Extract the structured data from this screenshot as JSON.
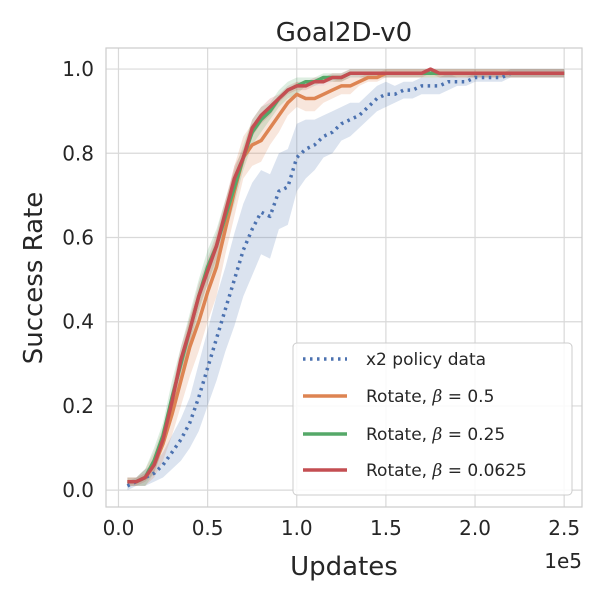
{
  "chart_data": {
    "type": "line",
    "title": "Goal2D-v0",
    "xlabel": "Updates",
    "ylabel": "Success Rate",
    "x_offset_label": "1e5",
    "xlim": [
      -0.07,
      2.6
    ],
    "ylim": [
      -0.04,
      1.05
    ],
    "grid": true,
    "legend_position": "lower-right",
    "x_ticks": [
      0.0,
      0.5,
      1.0,
      1.5,
      2.0,
      2.5
    ],
    "x_tick_labels": [
      "0.0",
      "0.5",
      "1.0",
      "1.5",
      "2.0",
      "2.5"
    ],
    "y_ticks": [
      0.0,
      0.2,
      0.4,
      0.6,
      0.8,
      1.0
    ],
    "y_tick_labels": [
      "0.0",
      "0.2",
      "0.4",
      "0.6",
      "0.8",
      "1.0"
    ],
    "x": [
      0.05,
      0.1,
      0.15,
      0.2,
      0.25,
      0.3,
      0.35,
      0.4,
      0.45,
      0.5,
      0.55,
      0.6,
      0.65,
      0.7,
      0.75,
      0.8,
      0.85,
      0.9,
      0.95,
      1.0,
      1.05,
      1.1,
      1.15,
      1.2,
      1.25,
      1.3,
      1.35,
      1.4,
      1.45,
      1.5,
      1.55,
      1.6,
      1.65,
      1.7,
      1.75,
      1.8,
      1.85,
      1.9,
      1.95,
      2.0,
      2.05,
      2.1,
      2.15,
      2.2,
      2.25,
      2.3,
      2.35,
      2.4,
      2.45,
      2.5
    ],
    "series": [
      {
        "name": "x2 policy data",
        "color": "#4c72b0",
        "style": "dotted",
        "values": [
          0.01,
          0.02,
          0.03,
          0.04,
          0.06,
          0.09,
          0.12,
          0.16,
          0.22,
          0.29,
          0.36,
          0.43,
          0.5,
          0.57,
          0.62,
          0.66,
          0.65,
          0.71,
          0.72,
          0.79,
          0.81,
          0.82,
          0.84,
          0.85,
          0.87,
          0.88,
          0.89,
          0.91,
          0.93,
          0.94,
          0.94,
          0.95,
          0.95,
          0.96,
          0.96,
          0.96,
          0.97,
          0.97,
          0.97,
          0.98,
          0.98,
          0.98,
          0.98,
          0.99,
          0.99,
          0.99,
          0.99,
          0.99,
          0.99,
          0.99
        ],
        "band": [
          0.01,
          0.01,
          0.02,
          0.02,
          0.03,
          0.04,
          0.05,
          0.06,
          0.08,
          0.09,
          0.1,
          0.1,
          0.11,
          0.11,
          0.11,
          0.1,
          0.1,
          0.09,
          0.09,
          0.08,
          0.07,
          0.06,
          0.05,
          0.05,
          0.04,
          0.04,
          0.03,
          0.03,
          0.03,
          0.03,
          0.02,
          0.02,
          0.02,
          0.02,
          0.02,
          0.02,
          0.02,
          0.01,
          0.01,
          0.01,
          0.01,
          0.01,
          0.01,
          0.01,
          0.01,
          0.01,
          0.01,
          0.01,
          0.01,
          0.01
        ]
      },
      {
        "name": "Rotate, β = 0.5",
        "color": "#dd8452",
        "style": "solid",
        "values": [
          0.02,
          0.02,
          0.03,
          0.06,
          0.11,
          0.18,
          0.26,
          0.34,
          0.4,
          0.47,
          0.53,
          0.62,
          0.71,
          0.79,
          0.82,
          0.83,
          0.86,
          0.89,
          0.92,
          0.94,
          0.93,
          0.93,
          0.94,
          0.95,
          0.96,
          0.96,
          0.97,
          0.98,
          0.98,
          0.99,
          0.99,
          0.99,
          0.99,
          0.99,
          0.99,
          0.99,
          0.99,
          0.99,
          0.99,
          0.99,
          0.99,
          0.99,
          0.99,
          0.99,
          0.99,
          0.99,
          0.99,
          0.99,
          0.99,
          0.99
        ],
        "band": [
          0.01,
          0.01,
          0.02,
          0.03,
          0.04,
          0.05,
          0.06,
          0.07,
          0.07,
          0.07,
          0.07,
          0.06,
          0.06,
          0.05,
          0.05,
          0.05,
          0.04,
          0.04,
          0.03,
          0.03,
          0.03,
          0.03,
          0.02,
          0.02,
          0.02,
          0.02,
          0.01,
          0.01,
          0.01,
          0.01,
          0.01,
          0.01,
          0.01,
          0.01,
          0.01,
          0.01,
          0.01,
          0.01,
          0.01,
          0.01,
          0.01,
          0.01,
          0.01,
          0.01,
          0.01,
          0.01,
          0.01,
          0.01,
          0.01,
          0.01
        ]
      },
      {
        "name": "Rotate, β = 0.25",
        "color": "#55a868",
        "style": "solid",
        "values": [
          0.02,
          0.02,
          0.03,
          0.07,
          0.13,
          0.22,
          0.3,
          0.38,
          0.46,
          0.53,
          0.58,
          0.65,
          0.72,
          0.79,
          0.85,
          0.88,
          0.9,
          0.93,
          0.95,
          0.96,
          0.97,
          0.97,
          0.98,
          0.98,
          0.98,
          0.99,
          0.99,
          0.99,
          0.99,
          0.99,
          0.99,
          0.99,
          0.99,
          0.99,
          0.99,
          0.99,
          0.99,
          0.99,
          0.99,
          0.99,
          0.99,
          0.99,
          0.99,
          0.99,
          0.99,
          0.99,
          0.99,
          0.99,
          0.99,
          0.99
        ],
        "band": [
          0.01,
          0.01,
          0.02,
          0.03,
          0.03,
          0.04,
          0.04,
          0.04,
          0.04,
          0.04,
          0.04,
          0.04,
          0.04,
          0.03,
          0.03,
          0.03,
          0.02,
          0.02,
          0.02,
          0.02,
          0.01,
          0.01,
          0.01,
          0.01,
          0.01,
          0.01,
          0.01,
          0.01,
          0.01,
          0.01,
          0.01,
          0.01,
          0.01,
          0.01,
          0.01,
          0.01,
          0.01,
          0.01,
          0.01,
          0.01,
          0.01,
          0.01,
          0.01,
          0.01,
          0.01,
          0.01,
          0.01,
          0.01,
          0.01,
          0.01
        ]
      },
      {
        "name": "Rotate, β = 0.0625",
        "color": "#c44e52",
        "style": "solid",
        "values": [
          0.02,
          0.02,
          0.03,
          0.06,
          0.12,
          0.21,
          0.31,
          0.38,
          0.46,
          0.52,
          0.58,
          0.66,
          0.74,
          0.79,
          0.86,
          0.89,
          0.91,
          0.93,
          0.95,
          0.96,
          0.96,
          0.97,
          0.97,
          0.98,
          0.98,
          0.99,
          0.99,
          0.99,
          0.99,
          0.99,
          0.99,
          0.99,
          0.99,
          0.99,
          1.0,
          0.99,
          0.99,
          0.99,
          0.99,
          0.99,
          0.99,
          0.99,
          0.99,
          0.99,
          0.99,
          0.99,
          0.99,
          0.99,
          0.99,
          0.99
        ],
        "band": [
          0.01,
          0.01,
          0.01,
          0.02,
          0.02,
          0.03,
          0.03,
          0.03,
          0.03,
          0.03,
          0.03,
          0.03,
          0.03,
          0.02,
          0.02,
          0.02,
          0.02,
          0.01,
          0.01,
          0.01,
          0.01,
          0.01,
          0.01,
          0.01,
          0.01,
          0.01,
          0.01,
          0.01,
          0.01,
          0.01,
          0.01,
          0.01,
          0.01,
          0.01,
          0.01,
          0.01,
          0.01,
          0.01,
          0.01,
          0.01,
          0.01,
          0.01,
          0.01,
          0.01,
          0.01,
          0.01,
          0.01,
          0.01,
          0.01,
          0.01
        ]
      }
    ],
    "legend": [
      {
        "label_prefix": "x2 policy data",
        "beta": ""
      },
      {
        "label_prefix": "Rotate, ",
        "beta": "0.5"
      },
      {
        "label_prefix": "Rotate, ",
        "beta": "0.25"
      },
      {
        "label_prefix": "Rotate, ",
        "beta": "0.0625"
      }
    ]
  }
}
